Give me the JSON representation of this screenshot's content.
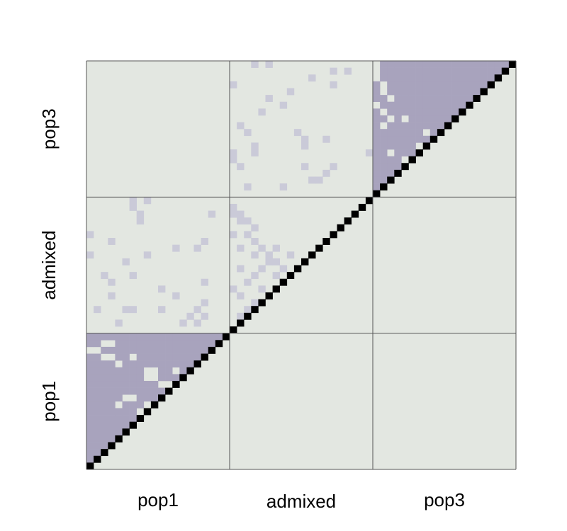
{
  "chart_data": {
    "type": "heatmap",
    "title": "",
    "xlabel": "",
    "ylabel": "",
    "grid": true,
    "n_cells": 60,
    "groups": [
      {
        "label": "pop1",
        "start": 0,
        "end": 20
      },
      {
        "label": "admixed",
        "start": 20,
        "end": 40
      },
      {
        "label": "pop3",
        "start": 40,
        "end": 60
      }
    ],
    "colors": {
      "background": "#e3e7e1",
      "diagonal": "#000000",
      "shared": "#a8a3bd",
      "sparse": "#cacad8",
      "grid_line": "#555555"
    },
    "blocks": [
      {
        "x_group": "pop1",
        "y_group": "pop1",
        "triangle": "upper-left",
        "fill": "shared",
        "gaps": [
          [
            4,
            6
          ],
          [
            7,
            7
          ],
          [
            7,
            14
          ],
          [
            8,
            7
          ],
          [
            8,
            8
          ],
          [
            8,
            12
          ],
          [
            9,
            4
          ],
          [
            9,
            8
          ],
          [
            10,
            5
          ],
          [
            10,
            6
          ],
          [
            11,
            16
          ],
          [
            11,
            17
          ],
          [
            12,
            10
          ],
          [
            12,
            11
          ],
          [
            13,
            8
          ],
          [
            13,
            9
          ],
          [
            14,
            8
          ],
          [
            14,
            9
          ],
          [
            14,
            12
          ],
          [
            15,
            4
          ],
          [
            16,
            2
          ],
          [
            16,
            3
          ],
          [
            16,
            6
          ],
          [
            17,
            0
          ],
          [
            17,
            1
          ],
          [
            18,
            2
          ],
          [
            18,
            3
          ]
        ]
      },
      {
        "x_group": "pop3",
        "y_group": "pop3",
        "triangle": "upper-left",
        "fill": "shared",
        "gaps": [
          [
            1,
            8
          ],
          [
            1,
            9
          ],
          [
            2,
            2
          ],
          [
            2,
            5
          ],
          [
            2,
            6
          ],
          [
            2,
            11
          ],
          [
            3,
            11
          ],
          [
            3,
            13
          ],
          [
            4,
            8
          ],
          [
            5,
            4
          ],
          [
            5,
            5
          ],
          [
            5,
            11
          ],
          [
            6,
            2
          ],
          [
            6,
            7
          ],
          [
            6,
            8
          ],
          [
            7,
            6
          ],
          [
            7,
            10
          ],
          [
            9,
            7
          ],
          [
            10,
            1
          ],
          [
            11,
            2
          ],
          [
            11,
            4
          ],
          [
            12,
            1
          ],
          [
            13,
            0
          ],
          [
            14,
            2
          ],
          [
            15,
            1
          ],
          [
            16,
            1
          ],
          [
            17,
            0
          ],
          [
            18,
            0
          ],
          [
            19,
            0
          ]
        ]
      },
      {
        "x_group": "admixed",
        "y_group": "pop3",
        "triangle": "full",
        "fill": "sparse",
        "points": [
          [
            1,
            2
          ],
          [
            1,
            7
          ],
          [
            2,
            11
          ],
          [
            2,
            12
          ],
          [
            3,
            13
          ],
          [
            4,
            1
          ],
          [
            4,
            10
          ],
          [
            4,
            14
          ],
          [
            5,
            0
          ],
          [
            6,
            0
          ],
          [
            6,
            3
          ],
          [
            6,
            19
          ],
          [
            7,
            3
          ],
          [
            7,
            10
          ],
          [
            8,
            10
          ],
          [
            8,
            13
          ],
          [
            9,
            2
          ],
          [
            9,
            9
          ],
          [
            10,
            1
          ],
          [
            12,
            4
          ],
          [
            13,
            7
          ],
          [
            14,
            5
          ],
          [
            15,
            8
          ],
          [
            16,
            0
          ],
          [
            16,
            14
          ],
          [
            17,
            11
          ],
          [
            18,
            14
          ],
          [
            18,
            16
          ],
          [
            19,
            3
          ],
          [
            19,
            5
          ]
        ]
      },
      {
        "x_group": "admixed",
        "y_group": "admixed",
        "triangle": "upper-left",
        "fill": "sparse",
        "points": [
          [
            0,
            1
          ],
          [
            0,
            4
          ],
          [
            0,
            7
          ],
          [
            1,
            6
          ],
          [
            1,
            9
          ],
          [
            1,
            13
          ],
          [
            2,
            1
          ],
          [
            2,
            3
          ],
          [
            2,
            8
          ],
          [
            2,
            11
          ],
          [
            3,
            2
          ],
          [
            3,
            4
          ],
          [
            3,
            7
          ],
          [
            3,
            10
          ],
          [
            4,
            3
          ],
          [
            4,
            5
          ],
          [
            4,
            9
          ],
          [
            4,
            12
          ],
          [
            5,
            1
          ],
          [
            5,
            6
          ],
          [
            5,
            8
          ],
          [
            5,
            11
          ],
          [
            6,
            0
          ],
          [
            6,
            4
          ],
          [
            6,
            7
          ],
          [
            6,
            9
          ],
          [
            7,
            2
          ],
          [
            7,
            8
          ],
          [
            7,
            10
          ],
          [
            8,
            3
          ],
          [
            8,
            6
          ],
          [
            8,
            9
          ],
          [
            9,
            1
          ],
          [
            9,
            4
          ],
          [
            9,
            7
          ],
          [
            10,
            5
          ],
          [
            10,
            6
          ],
          [
            11,
            3
          ],
          [
            11,
            5
          ],
          [
            11,
            8
          ],
          [
            12,
            1
          ],
          [
            12,
            4
          ],
          [
            12,
            6
          ],
          [
            13,
            3
          ],
          [
            14,
            0
          ],
          [
            14,
            2
          ],
          [
            15,
            3
          ],
          [
            16,
            1
          ],
          [
            16,
            2
          ],
          [
            17,
            0
          ],
          [
            17,
            1
          ],
          [
            18,
            0
          ]
        ]
      },
      {
        "x_group": "pop1",
        "y_group": "admixed",
        "triangle": "full",
        "fill": "sparse",
        "points": [
          [
            1,
            4
          ],
          [
            1,
            13
          ],
          [
            1,
            15
          ],
          [
            2,
            14
          ],
          [
            2,
            16
          ],
          [
            3,
            1
          ],
          [
            3,
            5
          ],
          [
            3,
            6
          ],
          [
            3,
            10
          ],
          [
            3,
            15
          ],
          [
            4,
            16
          ],
          [
            5,
            3
          ],
          [
            5,
            12
          ],
          [
            6,
            10
          ],
          [
            7,
            3
          ],
          [
            7,
            16
          ],
          [
            8,
            2
          ],
          [
            8,
            6
          ],
          [
            10,
            5
          ],
          [
            11,
            0
          ],
          [
            11,
            8
          ],
          [
            12,
            12
          ],
          [
            12,
            15
          ],
          [
            13,
            3
          ],
          [
            13,
            16
          ],
          [
            14,
            0
          ],
          [
            16,
            7
          ],
          [
            17,
            17
          ],
          [
            17,
            7
          ],
          [
            18,
            6
          ],
          [
            19,
            6
          ],
          [
            19,
            8
          ]
        ]
      }
    ]
  }
}
